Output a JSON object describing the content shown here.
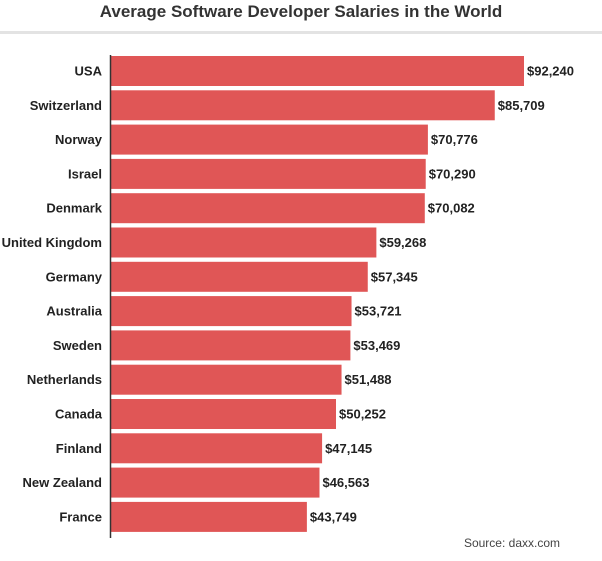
{
  "title": "Average Software Developer Salaries in the World",
  "source": "Source: daxx.com",
  "colors": {
    "bar": "#e05656",
    "axis": "#333333",
    "rule": "#e3e3e3"
  },
  "chart_data": {
    "type": "bar",
    "orientation": "horizontal",
    "title": "Average Software Developer Salaries in the World",
    "xlabel": "",
    "ylabel": "",
    "categories": [
      "USA",
      "Switzerland",
      "Norway",
      "Israel",
      "Denmark",
      "United Kingdom",
      "Germany",
      "Australia",
      "Sweden",
      "Netherlands",
      "Canada",
      "Finland",
      "New Zealand",
      "France"
    ],
    "values": [
      92240,
      85709,
      70776,
      70290,
      70082,
      59268,
      57345,
      53721,
      53469,
      51488,
      50252,
      47145,
      46563,
      43749
    ],
    "value_labels": [
      "$92,240",
      "$85,709",
      "$70,776",
      "$70,290",
      "$70,082",
      "$59,268",
      "$57,345",
      "$53,721",
      "$53,469",
      "$51,488",
      "$50,252",
      "$47,145",
      "$46,563",
      "$43,749"
    ],
    "xlim": [
      0,
      92240
    ],
    "grid": false,
    "legend": "none"
  }
}
